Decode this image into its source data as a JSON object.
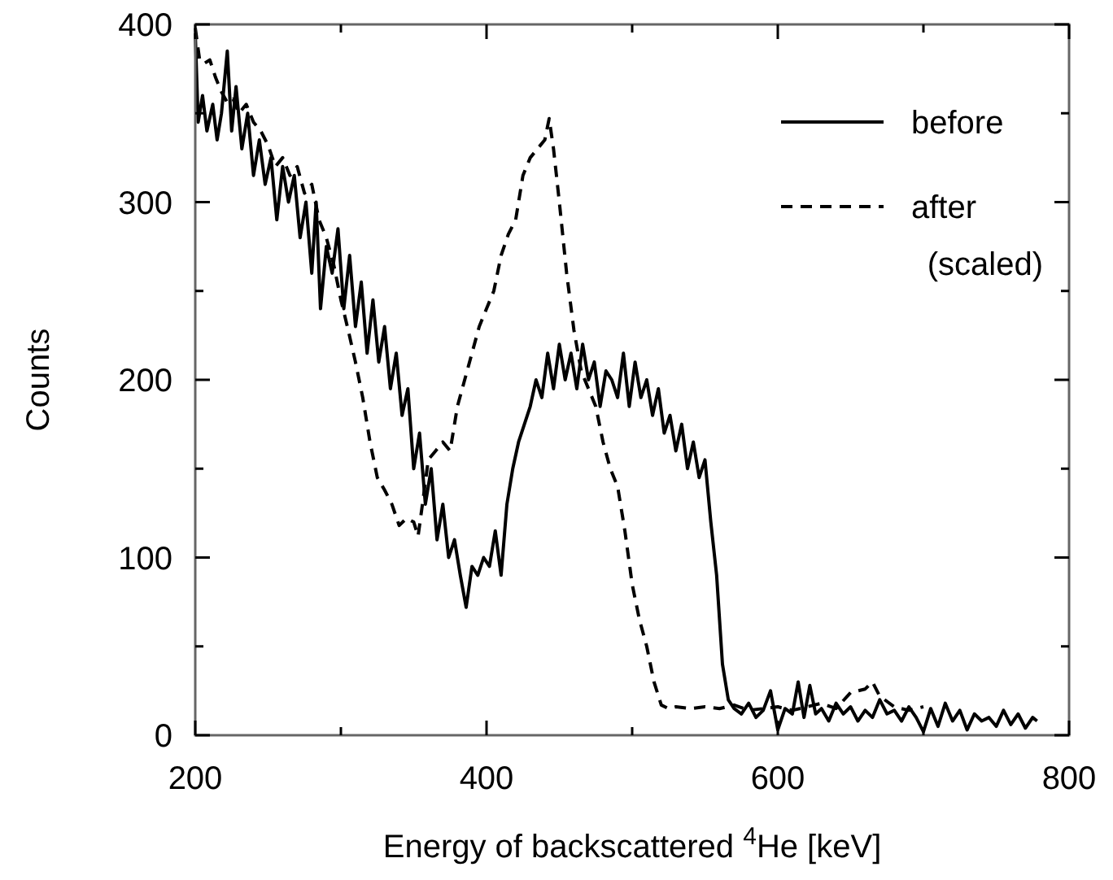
{
  "chart_data": {
    "type": "line",
    "xlabel": "Energy of backscattered $^{4}$He [keV]",
    "ylabel": "Counts",
    "xlim": [
      200,
      800
    ],
    "ylim": [
      0,
      400
    ],
    "xticks": [
      200,
      {
        "value": 300,
        "label": null
      },
      400,
      {
        "value": 500,
        "label": null
      },
      600,
      {
        "value": 700,
        "label": null
      },
      800
    ],
    "yticks": [
      0,
      {
        "value": 50,
        "label": null
      },
      100,
      {
        "value": 150,
        "label": null
      },
      200,
      {
        "value": 250,
        "label": null
      },
      300,
      {
        "value": 350,
        "label": null
      },
      400
    ],
    "grid": false,
    "legend": "top right",
    "marker": "none",
    "series": [
      {
        "name": "before",
        "color": "#000000",
        "line_style": "solid",
        "x": [
          200,
          202,
          205,
          208,
          212,
          215,
          218,
          222,
          225,
          228,
          232,
          236,
          240,
          244,
          248,
          252,
          256,
          260,
          264,
          268,
          272,
          276,
          280,
          283,
          286,
          290,
          294,
          298,
          302,
          306,
          310,
          314,
          318,
          322,
          326,
          330,
          334,
          338,
          342,
          346,
          350,
          354,
          358,
          362,
          366,
          370,
          374,
          378,
          382,
          386,
          390,
          394,
          398,
          402,
          406,
          410,
          414,
          418,
          422,
          426,
          430,
          434,
          438,
          442,
          446,
          450,
          454,
          458,
          462,
          466,
          470,
          474,
          478,
          482,
          486,
          490,
          494,
          498,
          502,
          506,
          510,
          514,
          518,
          522,
          526,
          530,
          534,
          538,
          542,
          546,
          550,
          554,
          558,
          562,
          566,
          570,
          575,
          580,
          585,
          590,
          595,
          600,
          605,
          610,
          614,
          618,
          622,
          626,
          630,
          635,
          640,
          645,
          650,
          655,
          660,
          665,
          670,
          675,
          680,
          685,
          690,
          695,
          700,
          705,
          710,
          715,
          720,
          725,
          730,
          735,
          740,
          745,
          750,
          755,
          760,
          765,
          770,
          775,
          778
        ],
        "values": [
          395,
          345,
          360,
          340,
          355,
          335,
          350,
          385,
          340,
          365,
          330,
          350,
          315,
          335,
          310,
          325,
          290,
          320,
          300,
          315,
          280,
          300,
          260,
          300,
          240,
          275,
          260,
          285,
          240,
          270,
          230,
          255,
          215,
          245,
          210,
          230,
          195,
          215,
          180,
          195,
          150,
          170,
          130,
          150,
          110,
          130,
          100,
          110,
          90,
          72,
          95,
          90,
          100,
          95,
          115,
          90,
          130,
          150,
          165,
          175,
          185,
          200,
          190,
          215,
          195,
          220,
          200,
          215,
          195,
          220,
          200,
          210,
          185,
          205,
          200,
          190,
          215,
          185,
          210,
          190,
          200,
          180,
          195,
          170,
          180,
          160,
          175,
          150,
          165,
          145,
          155,
          120,
          90,
          40,
          20,
          15,
          12,
          18,
          10,
          14,
          25,
          3,
          15,
          12,
          30,
          10,
          28,
          12,
          15,
          8,
          18,
          12,
          16,
          8,
          14,
          10,
          20,
          12,
          14,
          8,
          16,
          10,
          2,
          15,
          5,
          18,
          8,
          14,
          3,
          12,
          8,
          10,
          5,
          14,
          6,
          12,
          4,
          10,
          8
        ]
      },
      {
        "name": "after (scaled)",
        "color": "#000000",
        "line_style": "dashed",
        "x": [
          200,
          203,
          206,
          210,
          214,
          218,
          222,
          226,
          230,
          235,
          240,
          245,
          250,
          255,
          260,
          265,
          270,
          275,
          280,
          285,
          290,
          295,
          300,
          305,
          310,
          315,
          320,
          325,
          330,
          335,
          340,
          345,
          350,
          353,
          356,
          360,
          365,
          370,
          375,
          380,
          385,
          390,
          395,
          400,
          405,
          410,
          415,
          420,
          425,
          430,
          435,
          440,
          443,
          446,
          450,
          455,
          460,
          465,
          470,
          475,
          480,
          485,
          490,
          495,
          500,
          505,
          510,
          515,
          520,
          525,
          530,
          540,
          550,
          560,
          570,
          580,
          590,
          600,
          610,
          620,
          630,
          640,
          650,
          660,
          665,
          670,
          680,
          690,
          700
        ],
        "values": [
          398,
          380,
          378,
          380,
          370,
          362,
          356,
          358,
          350,
          355,
          345,
          340,
          332,
          320,
          325,
          315,
          320,
          305,
          310,
          290,
          280,
          265,
          245,
          228,
          210,
          190,
          165,
          145,
          138,
          130,
          118,
          122,
          120,
          112,
          130,
          155,
          160,
          165,
          160,
          185,
          200,
          215,
          230,
          240,
          250,
          270,
          282,
          290,
          315,
          325,
          330,
          335,
          347,
          330,
          300,
          260,
          228,
          205,
          195,
          185,
          165,
          150,
          140,
          115,
          85,
          65,
          50,
          30,
          17,
          15,
          16,
          15,
          16,
          15,
          17,
          14,
          15,
          16,
          14,
          16,
          18,
          15,
          24,
          26,
          30,
          22,
          16,
          14,
          16
        ]
      }
    ]
  }
}
